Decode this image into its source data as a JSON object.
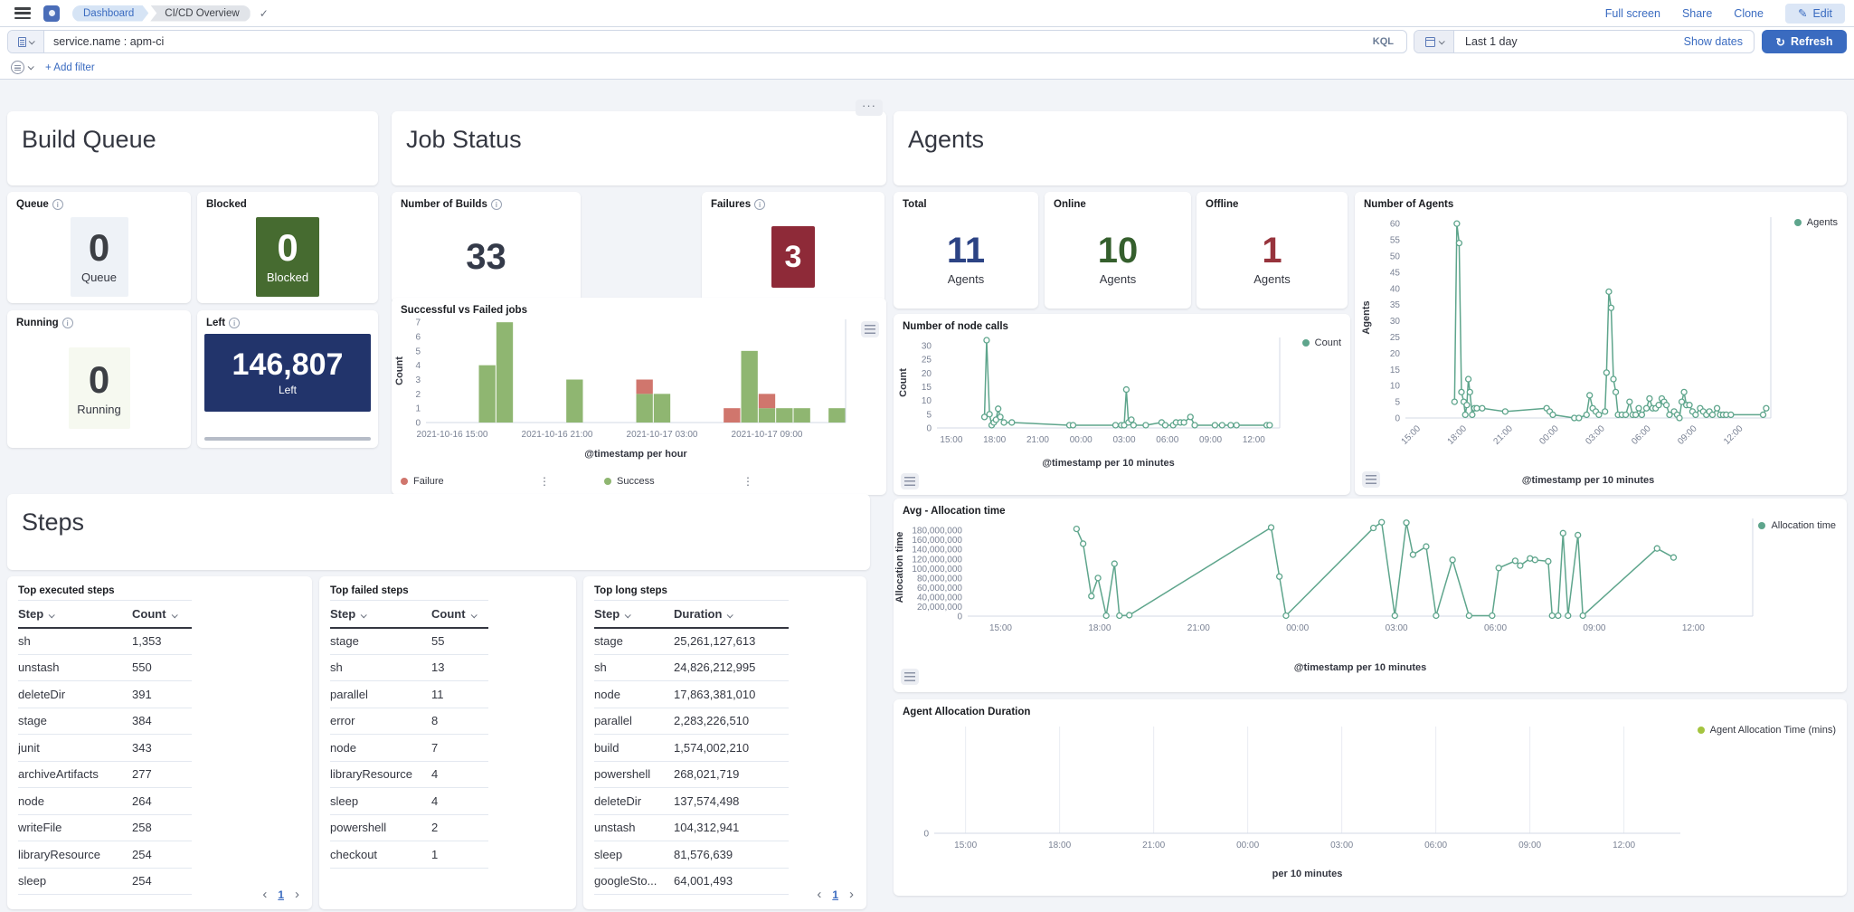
{
  "topbar": {
    "breadcrumbs": [
      "Dashboard",
      "CI/CD Overview"
    ],
    "full_screen": "Full screen",
    "share": "Share",
    "clone": "Clone",
    "edit": "Edit"
  },
  "querybar": {
    "query": "service.name : apm-ci",
    "kql": "KQL",
    "time_range": "Last 1 day",
    "show_dates": "Show dates",
    "refresh": "Refresh",
    "add_filter": "+ Add filter"
  },
  "build_queue": {
    "title": "Build Queue",
    "queue": {
      "title": "Queue",
      "value": "0",
      "label": "Queue"
    },
    "blocked": {
      "title": "Blocked",
      "value": "0",
      "label": "Blocked"
    },
    "running": {
      "title": "Running",
      "value": "0",
      "label": "Running"
    },
    "left": {
      "title": "Left",
      "value": "146,807",
      "label": "Left"
    }
  },
  "job_status": {
    "title": "Job Status",
    "builds": {
      "title": "Number of Builds",
      "value": "33"
    },
    "failures": {
      "title": "Failures",
      "value": "3"
    }
  },
  "agents_section": {
    "title": "Agents",
    "total": {
      "title": "Total",
      "value": "11",
      "label": "Agents"
    },
    "online": {
      "title": "Online",
      "value": "10",
      "label": "Agents"
    },
    "offline": {
      "title": "Offline",
      "value": "1",
      "label": "Agents"
    }
  },
  "steps": {
    "title": "Steps",
    "tables": [
      {
        "title": "Top executed steps",
        "columns": [
          "Step",
          "Count"
        ],
        "rows": [
          [
            "sh",
            "1,353"
          ],
          [
            "unstash",
            "550"
          ],
          [
            "deleteDir",
            "391"
          ],
          [
            "stage",
            "384"
          ],
          [
            "junit",
            "343"
          ],
          [
            "archiveArtifacts",
            "277"
          ],
          [
            "node",
            "264"
          ],
          [
            "writeFile",
            "258"
          ],
          [
            "libraryResource",
            "254"
          ],
          [
            "sleep",
            "254"
          ]
        ],
        "page": "1"
      },
      {
        "title": "Top failed steps",
        "columns": [
          "Step",
          "Count"
        ],
        "rows": [
          [
            "stage",
            "55"
          ],
          [
            "sh",
            "13"
          ],
          [
            "parallel",
            "11"
          ],
          [
            "error",
            "8"
          ],
          [
            "node",
            "7"
          ],
          [
            "libraryResource",
            "4"
          ],
          [
            "sleep",
            "4"
          ],
          [
            "powershell",
            "2"
          ],
          [
            "checkout",
            "1"
          ]
        ]
      },
      {
        "title": "Top long steps",
        "columns": [
          "Step",
          "Duration"
        ],
        "rows": [
          [
            "stage",
            "25,261,127,613"
          ],
          [
            "sh",
            "24,826,212,995"
          ],
          [
            "node",
            "17,863,381,010"
          ],
          [
            "parallel",
            "2,283,226,510"
          ],
          [
            "build",
            "1,574,002,210"
          ],
          [
            "powershell",
            "268,021,719"
          ],
          [
            "deleteDir",
            "137,574,498"
          ],
          [
            "unstash",
            "104,312,941"
          ],
          [
            "sleep",
            "81,576,639"
          ],
          [
            "googleSto...",
            "64,001,493"
          ]
        ],
        "page": "1"
      }
    ]
  },
  "colors": {
    "link_blue": "#3a6bc0",
    "tile_green": "#466b30",
    "tile_navy": "#22346b",
    "tile_maroon": "#8e2a38",
    "total_navy": "#2c4384",
    "online_green": "#355f2d",
    "offline_red": "#97333c",
    "line_green": "#5ea58c",
    "bar_success": "#8fb671",
    "bar_failure": "#d0766d",
    "duration_legend_green": "#a4c43f"
  },
  "chart_data": {
    "jobs": {
      "type": "bar",
      "stacked": true,
      "title": "Successful vs Failed jobs",
      "xlabel": "@timestamp per hour",
      "ylabel": "Count",
      "ylim": [
        0,
        7.2
      ],
      "yticks": [
        0,
        1,
        2,
        3,
        4,
        5,
        6,
        7
      ],
      "xlim": [
        0,
        24
      ],
      "x_start": "2021-10-16 14:00",
      "xticks": [
        {
          "v": 1.5,
          "label": "2021-10-16 15:00"
        },
        {
          "v": 7.5,
          "label": "2021-10-16 21:00"
        },
        {
          "v": 13.5,
          "label": "2021-10-17 03:00"
        },
        {
          "v": 19.5,
          "label": "2021-10-17 09:00"
        }
      ],
      "series": [
        {
          "name": "Failure",
          "color": "#d0766d"
        },
        {
          "name": "Success",
          "color": "#8fb671"
        }
      ],
      "bars": [
        {
          "x": 3,
          "success": 4,
          "failure": 0
        },
        {
          "x": 4,
          "success": 7,
          "failure": 0
        },
        {
          "x": 8,
          "success": 3,
          "failure": 0
        },
        {
          "x": 12,
          "success": 2,
          "failure": 1
        },
        {
          "x": 13,
          "success": 2,
          "failure": 0
        },
        {
          "x": 17,
          "success": 0,
          "failure": 1
        },
        {
          "x": 18,
          "success": 5,
          "failure": 0
        },
        {
          "x": 19,
          "success": 1,
          "failure": 1
        },
        {
          "x": 20,
          "success": 1,
          "failure": 0
        },
        {
          "x": 21,
          "success": 1,
          "failure": 0
        },
        {
          "x": 23,
          "success": 1,
          "failure": 0
        }
      ]
    },
    "agents": {
      "type": "line",
      "title": "Number of Agents",
      "ylabel": "Agents",
      "xlabel": "@timestamp per 10 minutes",
      "legend": "Agents",
      "color": "#5ea58c",
      "ylim": [
        0,
        62
      ],
      "yticks": [
        0,
        5,
        10,
        15,
        20,
        25,
        30,
        35,
        40,
        45,
        50,
        55,
        60
      ],
      "xlim": [
        0,
        23.8
      ],
      "rotate_x": true,
      "xticks": [
        {
          "v": 1,
          "label": "15:00"
        },
        {
          "v": 4,
          "label": "18:00"
        },
        {
          "v": 7,
          "label": "21:00"
        },
        {
          "v": 10,
          "label": "00:00"
        },
        {
          "v": 13,
          "label": "03:00"
        },
        {
          "v": 16,
          "label": "06:00"
        },
        {
          "v": 19,
          "label": "09:00"
        },
        {
          "v": 22,
          "label": "12:00"
        }
      ],
      "points": [
        [
          3.2,
          5
        ],
        [
          3.35,
          60
        ],
        [
          3.5,
          54
        ],
        [
          3.65,
          8
        ],
        [
          3.8,
          5
        ],
        [
          3.9,
          1
        ],
        [
          4.0,
          4
        ],
        [
          4.1,
          12
        ],
        [
          4.2,
          8
        ],
        [
          4.35,
          1
        ],
        [
          4.5,
          3
        ],
        [
          4.65,
          3
        ],
        [
          5.0,
          3
        ],
        [
          6.5,
          2
        ],
        [
          9.2,
          3
        ],
        [
          9.4,
          2
        ],
        [
          9.6,
          1
        ],
        [
          11.0,
          0
        ],
        [
          11.3,
          0
        ],
        [
          11.8,
          1
        ],
        [
          12.0,
          7
        ],
        [
          12.2,
          3
        ],
        [
          12.4,
          2
        ],
        [
          12.6,
          1
        ],
        [
          13.0,
          2
        ],
        [
          13.1,
          14
        ],
        [
          13.25,
          39
        ],
        [
          13.4,
          34
        ],
        [
          13.55,
          12
        ],
        [
          13.7,
          8
        ],
        [
          13.85,
          1
        ],
        [
          14.1,
          1
        ],
        [
          14.35,
          1
        ],
        [
          14.6,
          5
        ],
        [
          14.8,
          1
        ],
        [
          15.0,
          1
        ],
        [
          15.2,
          3
        ],
        [
          15.4,
          1
        ],
        [
          15.7,
          3
        ],
        [
          15.9,
          6
        ],
        [
          16.1,
          3
        ],
        [
          16.3,
          3
        ],
        [
          16.5,
          4
        ],
        [
          16.7,
          6
        ],
        [
          16.85,
          5
        ],
        [
          17.0,
          4
        ],
        [
          17.2,
          1
        ],
        [
          17.5,
          2
        ],
        [
          17.7,
          1
        ],
        [
          17.85,
          0
        ],
        [
          18.0,
          5
        ],
        [
          18.15,
          8
        ],
        [
          18.3,
          4
        ],
        [
          18.5,
          4
        ],
        [
          18.7,
          2
        ],
        [
          18.9,
          1
        ],
        [
          19.2,
          3
        ],
        [
          19.4,
          2
        ],
        [
          19.6,
          1
        ],
        [
          19.8,
          2
        ],
        [
          20.0,
          1
        ],
        [
          20.3,
          3
        ],
        [
          20.5,
          1
        ],
        [
          20.7,
          1
        ],
        [
          20.9,
          1
        ],
        [
          21.2,
          1
        ],
        [
          23.3,
          1
        ],
        [
          23.5,
          3
        ]
      ]
    },
    "node_calls": {
      "type": "line",
      "title": "Number of node calls",
      "ylabel": "Count",
      "xlabel": "@timestamp per 10 minutes",
      "legend": "Count",
      "color": "#5ea58c",
      "ylim": [
        0,
        33
      ],
      "yticks": [
        0,
        5,
        10,
        15,
        20,
        25,
        30
      ],
      "xlim": [
        0,
        23.8
      ],
      "rotate_x": false,
      "xticks": [
        {
          "v": 1,
          "label": "15:00"
        },
        {
          "v": 4,
          "label": "18:00"
        },
        {
          "v": 7,
          "label": "21:00"
        },
        {
          "v": 10,
          "label": "00:00"
        },
        {
          "v": 13,
          "label": "03:00"
        },
        {
          "v": 16,
          "label": "06:00"
        },
        {
          "v": 19,
          "label": "09:00"
        },
        {
          "v": 22,
          "label": "12:00"
        }
      ],
      "points": [
        [
          3.3,
          4
        ],
        [
          3.45,
          32
        ],
        [
          3.65,
          5
        ],
        [
          3.8,
          1
        ],
        [
          3.95,
          2
        ],
        [
          4.1,
          3
        ],
        [
          4.25,
          7
        ],
        [
          4.4,
          4
        ],
        [
          4.65,
          2
        ],
        [
          5.2,
          2
        ],
        [
          9.2,
          1
        ],
        [
          9.45,
          1
        ],
        [
          12.4,
          1
        ],
        [
          12.8,
          1
        ],
        [
          13.0,
          1
        ],
        [
          13.15,
          14
        ],
        [
          13.3,
          2
        ],
        [
          13.5,
          3
        ],
        [
          13.65,
          1
        ],
        [
          14.5,
          1
        ],
        [
          15.6,
          2
        ],
        [
          15.85,
          1
        ],
        [
          16.4,
          1
        ],
        [
          16.6,
          2
        ],
        [
          16.9,
          2
        ],
        [
          17.15,
          2
        ],
        [
          17.6,
          4
        ],
        [
          17.9,
          1
        ],
        [
          19.3,
          1
        ],
        [
          19.8,
          1
        ],
        [
          20.4,
          1
        ],
        [
          20.8,
          1
        ],
        [
          22.9,
          1
        ],
        [
          23.1,
          1
        ]
      ]
    },
    "allocation": {
      "type": "line",
      "title": "Avg - Allocation time",
      "ylabel": "Allocation time",
      "xlabel": "@timestamp per 10 minutes",
      "legend": "Allocation time",
      "color": "#5ea58c",
      "ylim": [
        0,
        205000000
      ],
      "yticks": [
        0,
        20000000,
        40000000,
        60000000,
        80000000,
        100000000,
        120000000,
        140000000,
        160000000,
        180000000
      ],
      "ytick_labels": [
        "0",
        "20,000,000",
        "40,000,000",
        "60,000,000",
        "80,000,000",
        "100,000,000",
        "120,000,000",
        "140,000,000",
        "160,000,000",
        "180,000,000"
      ],
      "xlim": [
        0,
        23.8
      ],
      "rotate_x": false,
      "xticks": [
        {
          "v": 1,
          "label": "15:00"
        },
        {
          "v": 4,
          "label": "18:00"
        },
        {
          "v": 7,
          "label": "21:00"
        },
        {
          "v": 10,
          "label": "00:00"
        },
        {
          "v": 13,
          "label": "03:00"
        },
        {
          "v": 16,
          "label": "06:00"
        },
        {
          "v": 19,
          "label": "09:00"
        },
        {
          "v": 22,
          "label": "12:00"
        }
      ],
      "points": [
        [
          3.3,
          183000000
        ],
        [
          3.5,
          152000000
        ],
        [
          3.75,
          42000000
        ],
        [
          3.95,
          80000000
        ],
        [
          4.2,
          1000000
        ],
        [
          4.45,
          110000000
        ],
        [
          4.6,
          1000000
        ],
        [
          4.9,
          2000000
        ],
        [
          9.2,
          186000000
        ],
        [
          9.45,
          83000000
        ],
        [
          9.65,
          1000000
        ],
        [
          12.3,
          185000000
        ],
        [
          12.55,
          197000000
        ],
        [
          12.95,
          1000000
        ],
        [
          13.3,
          196000000
        ],
        [
          13.5,
          129000000
        ],
        [
          13.9,
          146000000
        ],
        [
          14.2,
          1000000
        ],
        [
          14.7,
          118000000
        ],
        [
          15.2,
          1000000
        ],
        [
          15.9,
          1000000
        ],
        [
          16.1,
          101000000
        ],
        [
          16.6,
          116000000
        ],
        [
          16.75,
          106000000
        ],
        [
          17.05,
          121000000
        ],
        [
          17.2,
          118000000
        ],
        [
          17.6,
          115000000
        ],
        [
          17.72,
          1000000
        ],
        [
          17.9,
          1000000
        ],
        [
          18.05,
          174000000
        ],
        [
          18.2,
          1000000
        ],
        [
          18.5,
          170000000
        ],
        [
          18.65,
          1000000
        ],
        [
          20.9,
          142000000
        ],
        [
          21.4,
          123000000
        ]
      ]
    },
    "agent_duration": {
      "type": "line",
      "title": "Agent Allocation Duration",
      "xlabel": "per 10 minutes",
      "legend": "Agent Allocation Time (mins)",
      "color": "#a4c43f",
      "ylim": [
        0,
        1
      ],
      "yticks": [
        0
      ],
      "ytick_labels": [
        "0"
      ],
      "xlim": [
        0,
        23.8
      ],
      "vgrid": true,
      "xticks": [
        {
          "v": 1,
          "label": "15:00"
        },
        {
          "v": 4,
          "label": "18:00"
        },
        {
          "v": 7,
          "label": "21:00"
        },
        {
          "v": 10,
          "label": "00:00"
        },
        {
          "v": 13,
          "label": "03:00"
        },
        {
          "v": 16,
          "label": "06:00"
        },
        {
          "v": 19,
          "label": "09:00"
        },
        {
          "v": 22,
          "label": "12:00"
        }
      ],
      "points": []
    }
  }
}
